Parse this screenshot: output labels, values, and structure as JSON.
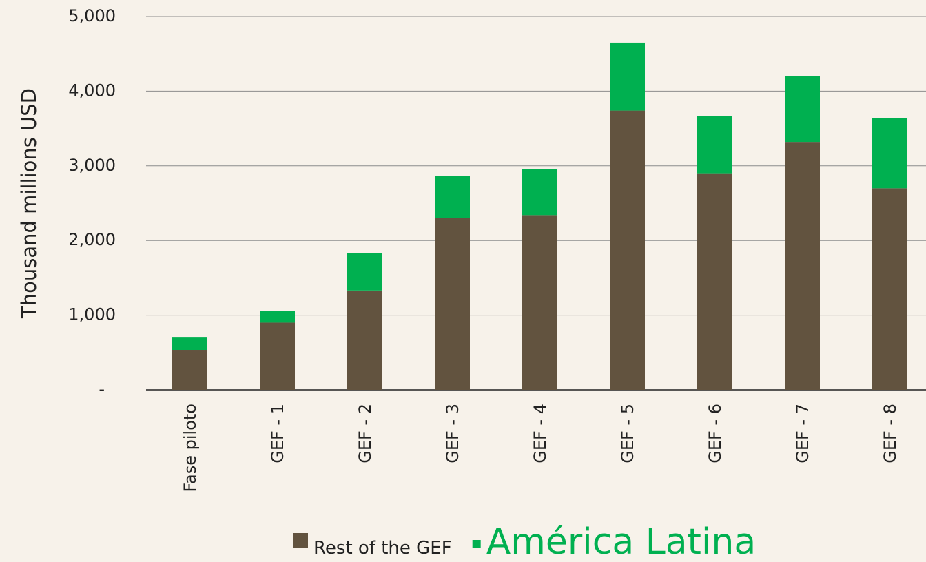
{
  "chart_data": {
    "type": "stacked_bar",
    "y_label": "Thousand millions USD",
    "categories": [
      "Fase piloto",
      "GEF - 1",
      "GEF - 2",
      "GEF - 3",
      "GEF - 4",
      "GEF - 5",
      "GEF - 6",
      "GEF - 7",
      "GEF - 8"
    ],
    "series": [
      {
        "name": "Rest of the GEF",
        "color": "#62533f",
        "values": [
          535,
          900,
          1330,
          2300,
          2340,
          3740,
          2900,
          3320,
          2700
        ]
      },
      {
        "name": "América Latina",
        "color": "#00b050",
        "values": [
          165,
          160,
          500,
          560,
          620,
          910,
          770,
          880,
          940
        ]
      }
    ],
    "ylim": [
      0,
      5000
    ],
    "yticks": [
      {
        "value": 0,
        "label": "-"
      },
      {
        "value": 1000,
        "label": "1,000"
      },
      {
        "value": 2000,
        "label": "2,000"
      },
      {
        "value": 3000,
        "label": "3,000"
      },
      {
        "value": 4000,
        "label": "4,000"
      },
      {
        "value": 5000,
        "label": "5,000"
      }
    ],
    "grid": true
  }
}
